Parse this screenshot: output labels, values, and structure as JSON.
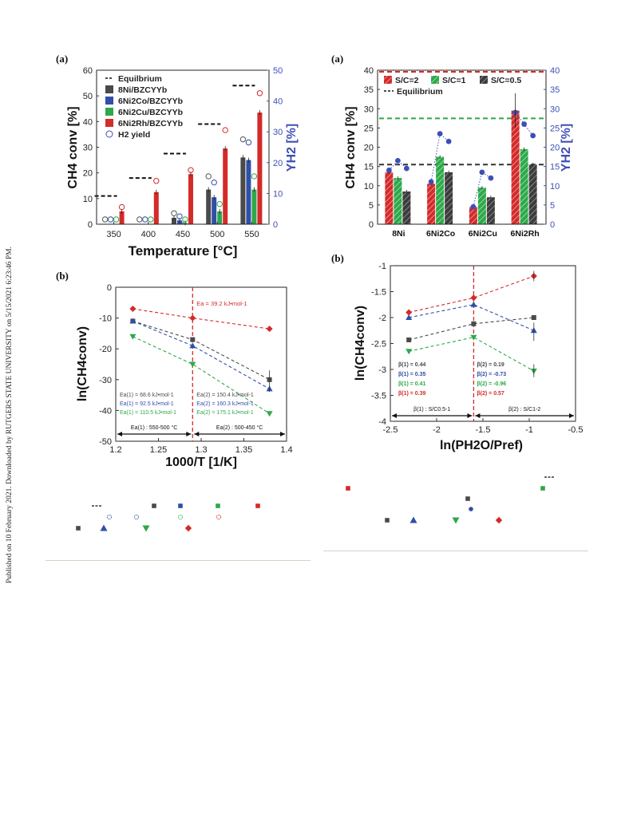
{
  "sidebar_text": "Published on 10 February 2021. Downloaded by RUTGERS STATE UNIVERSITY on 5/15/2021 6:23:46 PM.",
  "colors": {
    "black_gray": "#4a4a4a",
    "blue": "#2f4fa8",
    "green": "#2ea84a",
    "red": "#d42a2a",
    "axis_blue": "#3d4fb5"
  },
  "legend_key_icons": [
    "dashed-line-icon",
    "open-circle-icon",
    "filled-square-icon",
    "filled-triangle-icon",
    "filled-inverted-triangle-icon",
    "filled-diamond-icon"
  ],
  "chart_data": [
    {
      "id": "left-a",
      "type": "bar",
      "panel_label": "(a)",
      "xlabel": "Temperature [°C]",
      "ylabel": "CH4 conv [%]",
      "y2label": "YH2 [%]",
      "categories": [
        "350",
        "400",
        "450",
        "500",
        "550"
      ],
      "ylim": [
        0,
        60
      ],
      "y2lim": [
        0,
        50
      ],
      "yticks": [
        "0",
        "10",
        "20",
        "30",
        "40",
        "50",
        "60"
      ],
      "y2ticks": [
        "0",
        "10",
        "20",
        "30",
        "40",
        "50"
      ],
      "legend": [
        "Equilbrium",
        "8Ni/BZCYYb",
        "6Ni2Co/BZCYYb",
        "6Ni2Cu/BZCYYb",
        "6Ni2Rh/BZCYYb",
        "H2 yield"
      ],
      "equilibrium": [
        11,
        18,
        27.5,
        39,
        54
      ],
      "series": [
        {
          "name": "8Ni/BZCYYb",
          "values": [
            0,
            0,
            2.5,
            13.5,
            26
          ]
        },
        {
          "name": "6Ni2Co/BZCYYb",
          "values": [
            0,
            0,
            1.5,
            10.5,
            25
          ]
        },
        {
          "name": "6Ni2Cu/BZCYYb",
          "values": [
            0,
            0,
            0.5,
            5,
            13.5
          ]
        },
        {
          "name": "6Ni2Rh/BZCYYb",
          "values": [
            5,
            12.5,
            19.5,
            29.5,
            43.5
          ]
        }
      ],
      "h2_yield": [
        [
          0,
          0,
          2,
          14,
          26
        ],
        [
          0,
          0,
          1,
          12,
          25
        ],
        [
          0,
          0,
          0,
          5,
          14
        ],
        [
          4,
          12.5,
          16,
          29,
          41
        ]
      ]
    },
    {
      "id": "left-b",
      "type": "line",
      "panel_label": "(b)",
      "xlabel": "1000/T [1/K]",
      "ylabel": "ln(CH4conv)",
      "xlim": [
        1.2,
        1.4
      ],
      "ylim": [
        -50,
        0
      ],
      "xticks": [
        "1.2",
        "1.25",
        "1.3",
        "1.35",
        "1.4"
      ],
      "yticks": [
        "0",
        "-10",
        "-20",
        "-30",
        "-40",
        "-50"
      ],
      "x": [
        1.22,
        1.29,
        1.38
      ],
      "series": [
        {
          "values": [
            -11,
            -17,
            -30
          ]
        },
        {
          "values": [
            -11,
            -19,
            -33
          ]
        },
        {
          "values": [
            -16,
            -25,
            -41
          ]
        },
        {
          "values": [
            -7,
            -10,
            -13.5
          ]
        }
      ],
      "divider_x": 1.29,
      "annotation_top": "Ea = 39.2 kJ•mol-1",
      "ea1": [
        "Ea(1) = 68.6 kJ•mol-1",
        "Ea(1) = 92.5 kJ•mol-1",
        "Ea(1) = 110.5 kJ•mol-1"
      ],
      "ea2": [
        "Ea(2) = 150.4 kJ•mol-1",
        "Ea(2) = 160.3 kJ•mol-1",
        "Ea(2) = 175.1 kJ•mol-1"
      ],
      "range1": "Ea(1) : 550-500 °C",
      "range2": "Ea(2) : 500-450 °C"
    },
    {
      "id": "right-a",
      "type": "bar",
      "panel_label": "(a)",
      "ylabel": "CH4 conv [%]",
      "y2label": "YH2 [%]",
      "categories": [
        "8Ni",
        "6Ni2Co",
        "6Ni2Cu",
        "6Ni2Rh"
      ],
      "ylim": [
        0,
        40
      ],
      "y2lim": [
        0,
        40
      ],
      "yticks": [
        "0",
        "5",
        "10",
        "15",
        "20",
        "25",
        "30",
        "35",
        "40"
      ],
      "y2ticks": [
        "0",
        "5",
        "10",
        "15",
        "20",
        "25",
        "30",
        "35",
        "40"
      ],
      "legend": [
        "S/C=2",
        "S/C=1",
        "S/C=0.5",
        "Equilibrium"
      ],
      "equilibrium_lines": [
        40,
        27.5,
        15.5
      ],
      "series": [
        {
          "name": "S/C=2",
          "values": [
            13.5,
            10.5,
            4.5,
            29.5
          ]
        },
        {
          "name": "S/C=1",
          "values": [
            12,
            17.5,
            9.5,
            19.5
          ]
        },
        {
          "name": "S/C=0.5",
          "values": [
            8.5,
            13.5,
            7,
            15.5
          ]
        }
      ],
      "h2_yield": [
        [
          14,
          16.5,
          14.5
        ],
        [
          11,
          23.5,
          21.5
        ],
        [
          4.5,
          13.5,
          12
        ],
        [
          29,
          26,
          23
        ]
      ]
    },
    {
      "id": "right-b",
      "type": "line",
      "panel_label": "(b)",
      "xlabel": "ln(PH2O/Pref)",
      "ylabel": "ln(CH4conv)",
      "xlim": [
        -2.5,
        -0.5
      ],
      "ylim": [
        -4,
        -1
      ],
      "xticks": [
        "-2.5",
        "-2",
        "-1.5",
        "-1",
        "-0.5"
      ],
      "yticks": [
        "-1",
        "-1.5",
        "-2",
        "-2.5",
        "-3",
        "-3.5",
        "-4"
      ],
      "x": [
        -2.3,
        -1.6,
        -0.95
      ],
      "series": [
        {
          "values": [
            -2.43,
            -2.12,
            -2.0
          ]
        },
        {
          "values": [
            -2.0,
            -1.75,
            -2.25
          ]
        },
        {
          "values": [
            -2.65,
            -2.38,
            -3.03
          ]
        },
        {
          "values": [
            -1.9,
            -1.62,
            -1.2
          ]
        }
      ],
      "divider_x": -1.6,
      "beta1": [
        "β(1) = 0.44",
        "β(1) = 0.35",
        "β(1) = 0.41",
        "β(1) = 0.39"
      ],
      "beta2": [
        "β(2) = 0.19",
        "β(2) = -0.73",
        "β(2) = -0.96",
        "β(2) = 0.57"
      ],
      "range1": "β(1) : S/C0.5-1",
      "range2": "β(2) : S/C1-2"
    }
  ]
}
